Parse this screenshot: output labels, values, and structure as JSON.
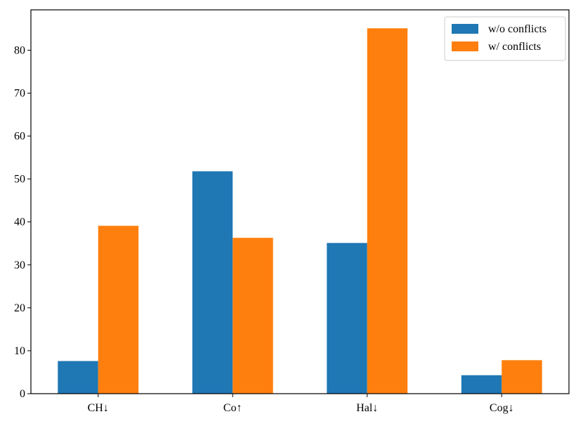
{
  "chart_data": {
    "type": "bar",
    "categories": [
      "CH↓",
      "Co↑",
      "Hal↓",
      "Cog↓"
    ],
    "series": [
      {
        "name": "w/o conflicts",
        "color": "#1f77b4",
        "values": [
          7.6,
          51.8,
          35.1,
          4.3
        ]
      },
      {
        "name": "w/ conflicts",
        "color": "#ff7f0e",
        "values": [
          39.1,
          36.3,
          85.1,
          7.8
        ]
      }
    ],
    "title": "",
    "xlabel": "",
    "ylabel": "",
    "ylim": [
      0,
      89.4
    ],
    "yticks": [
      0,
      10,
      20,
      30,
      40,
      50,
      60,
      70,
      80
    ],
    "grid": false,
    "legend_position": "top-right"
  }
}
